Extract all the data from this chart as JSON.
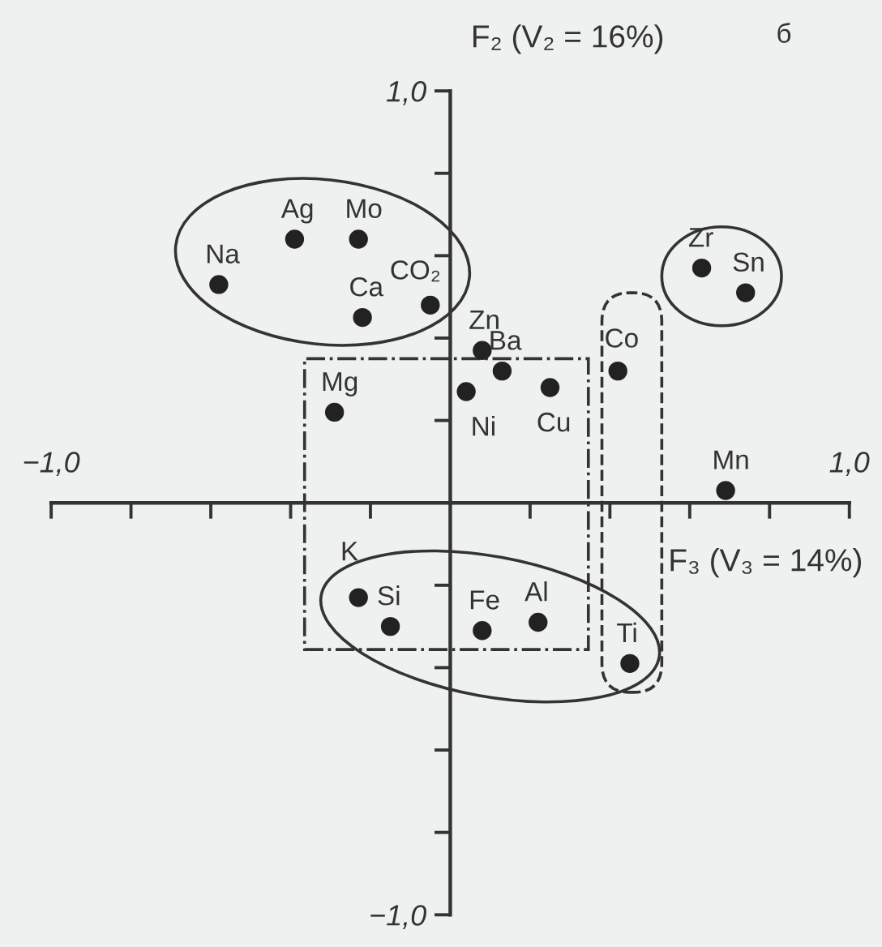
{
  "chart_data": {
    "type": "scatter",
    "xlabel": "F₃ (V₃ = 14%)",
    "ylabel": "F₂ (V₂ = 16%)",
    "xlim": [
      -1.0,
      1.0
    ],
    "ylim": [
      -1.0,
      1.0
    ],
    "xticks": [
      {
        "value": -1.0,
        "label": "−1,0"
      },
      {
        "value": -0.8,
        "label": null
      },
      {
        "value": -0.6,
        "label": null
      },
      {
        "value": -0.4,
        "label": null
      },
      {
        "value": -0.2,
        "label": null
      },
      {
        "value": 0.2,
        "label": null
      },
      {
        "value": 0.4,
        "label": null
      },
      {
        "value": 0.6,
        "label": null
      },
      {
        "value": 0.8,
        "label": null
      },
      {
        "value": 1.0,
        "label": "1,0"
      }
    ],
    "yticks": [
      {
        "value": -1.0,
        "label": "−1,0"
      },
      {
        "value": -0.8,
        "label": null
      },
      {
        "value": -0.6,
        "label": null
      },
      {
        "value": -0.4,
        "label": null
      },
      {
        "value": -0.2,
        "label": null
      },
      {
        "value": 0.2,
        "label": null
      },
      {
        "value": 0.4,
        "label": null
      },
      {
        "value": 0.6,
        "label": null
      },
      {
        "value": 0.8,
        "label": null
      },
      {
        "value": 1.0,
        "label": "1,0"
      }
    ],
    "grid": false,
    "marker": "circle",
    "series": [
      {
        "color": "#222222",
        "x": [
          -0.58,
          -0.39,
          -0.23,
          -0.22,
          -0.05,
          0.08,
          0.13,
          0.04,
          0.25,
          0.42,
          -0.29,
          0.63,
          0.74,
          0.69,
          -0.23,
          -0.15,
          0.08,
          0.22,
          0.45
        ],
        "values": [
          0.53,
          0.64,
          0.64,
          0.45,
          0.48,
          0.37,
          0.32,
          0.27,
          0.28,
          0.32,
          0.22,
          0.57,
          0.51,
          0.03,
          -0.23,
          -0.3,
          -0.31,
          -0.29,
          -0.39
        ]
      }
    ],
    "annotations": [
      {
        "text": "Na",
        "x": -0.58,
        "y": 0.53
      },
      {
        "text": "Ag",
        "x": -0.39,
        "y": 0.64
      },
      {
        "text": "Mo",
        "x": -0.23,
        "y": 0.64
      },
      {
        "text": "Ca",
        "x": -0.22,
        "y": 0.45
      },
      {
        "text": "CO₂",
        "x": -0.05,
        "y": 0.48
      },
      {
        "text": "Zn",
        "x": 0.08,
        "y": 0.37
      },
      {
        "text": "Ba",
        "x": 0.13,
        "y": 0.32
      },
      {
        "text": "Ni",
        "x": 0.04,
        "y": 0.27
      },
      {
        "text": "Cu",
        "x": 0.25,
        "y": 0.28
      },
      {
        "text": "Co",
        "x": 0.42,
        "y": 0.32
      },
      {
        "text": "Mg",
        "x": -0.29,
        "y": 0.22
      },
      {
        "text": "Zr",
        "x": 0.63,
        "y": 0.57
      },
      {
        "text": "Sn",
        "x": 0.74,
        "y": 0.51
      },
      {
        "text": "Mn",
        "x": 0.69,
        "y": 0.03
      },
      {
        "text": "K",
        "x": -0.23,
        "y": -0.23
      },
      {
        "text": "Si",
        "x": -0.15,
        "y": -0.3
      },
      {
        "text": "Fe",
        "x": 0.08,
        "y": -0.31
      },
      {
        "text": "Al",
        "x": 0.22,
        "y": -0.29
      },
      {
        "text": "Ti",
        "x": 0.45,
        "y": -0.39
      },
      "б"
    ]
  }
}
